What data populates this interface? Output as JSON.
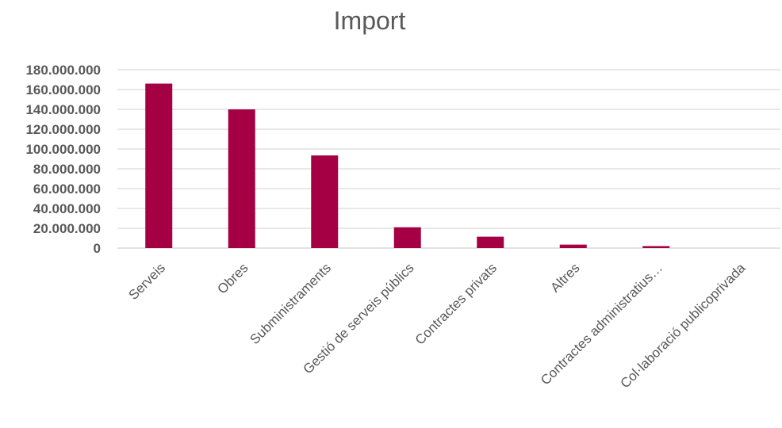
{
  "chart_data": {
    "type": "bar",
    "title": "Import",
    "xlabel": "",
    "ylabel": "",
    "categories": [
      "Serveis",
      "Obres",
      "Subministraments",
      "Gestió de serveis públics",
      "Contractes privats",
      "Altres",
      "Contractes administratius…",
      "Col·laboració publicoprivada"
    ],
    "values": [
      166000000,
      140000000,
      93500000,
      21000000,
      11500000,
      3500000,
      2000000,
      0
    ],
    "ylim": [
      0,
      180000000
    ],
    "yticks": [
      {
        "value": 0,
        "label": "0"
      },
      {
        "value": 20000000,
        "label": "20.000.000"
      },
      {
        "value": 40000000,
        "label": "40.000.000"
      },
      {
        "value": 60000000,
        "label": "60.000.000"
      },
      {
        "value": 80000000,
        "label": "80.000.000"
      },
      {
        "value": 100000000,
        "label": "100.000.000"
      },
      {
        "value": 120000000,
        "label": "120.000.000"
      },
      {
        "value": 140000000,
        "label": "140.000.000"
      },
      {
        "value": 160000000,
        "label": "160.000.000"
      },
      {
        "value": 180000000,
        "label": "180.000.000"
      }
    ],
    "grid": true,
    "legend": "none",
    "bar_color": "#a50044"
  }
}
